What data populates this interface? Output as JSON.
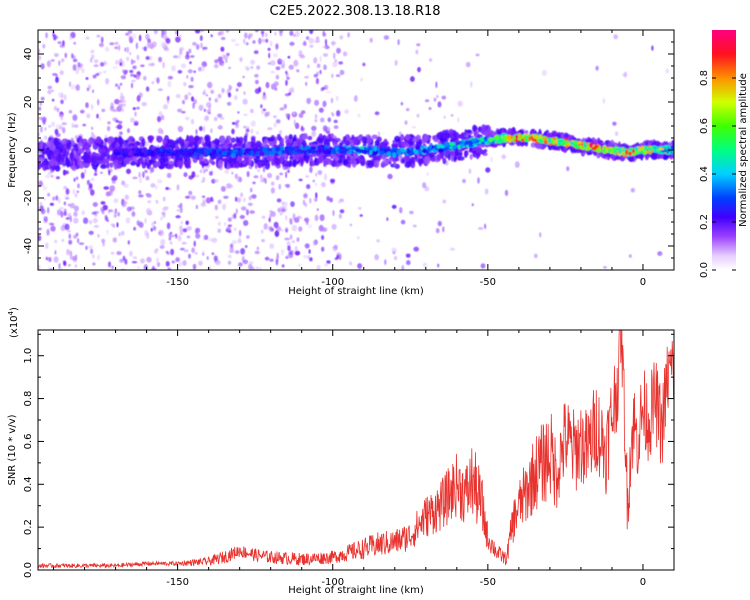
{
  "title": "C2E5.2022.308.13.18.R18",
  "colors": {
    "snr_line": "#e8322e",
    "spectrogram_base": "#6a00ff"
  },
  "chart_data": [
    {
      "type": "heatmap",
      "xlabel": "Height of straight line (km)",
      "ylabel": "Frequency (Hz)",
      "xlim": [
        -195,
        10
      ],
      "ylim": [
        -50,
        50
      ],
      "xticks": [
        -150,
        -100,
        -50,
        0
      ],
      "yticks": [
        -40,
        -20,
        0,
        20,
        40
      ],
      "tick_labels_x": [
        "-150",
        "-100",
        "-50",
        "0"
      ],
      "tick_labels_y": [
        "-40",
        "-20",
        "0",
        "20",
        "40"
      ],
      "colorbar": {
        "label": "Normalized spectral amplitude",
        "range": [
          0,
          1
        ],
        "ticks": [
          "0.0",
          "0.2",
          "0.4",
          "0.6",
          "0.8"
        ],
        "colormap": "rainbow"
      },
      "ridge": {
        "description_points_x": [
          -195,
          -170,
          -150,
          -130,
          -110,
          -100,
          -90,
          -80,
          -70,
          -60,
          -50,
          -45,
          -40,
          -35,
          -30,
          -25,
          -20,
          -15,
          -10,
          -5,
          0,
          5,
          10
        ],
        "frequency_hz": [
          -2,
          -1,
          -1,
          -1,
          0,
          0,
          0,
          -1,
          0,
          2,
          4,
          5,
          5,
          5,
          4,
          3,
          2,
          1,
          0,
          -1,
          0,
          0,
          0
        ],
        "peak_amplitude": [
          0.25,
          0.35,
          0.4,
          0.45,
          0.45,
          0.45,
          0.55,
          0.5,
          0.55,
          0.6,
          0.7,
          0.8,
          0.95,
          0.95,
          0.9,
          0.9,
          1.0,
          1.0,
          0.95,
          0.9,
          0.95,
          0.85,
          0.6
        ]
      }
    },
    {
      "type": "line",
      "xlabel": "Height of straight line (km)",
      "ylabel": "SNR (10 * v/v)",
      "yscale_label": "(x10",
      "yscale_exp": "4",
      "yscale_close": ")",
      "xlim": [
        -195,
        10
      ],
      "ylim": [
        0,
        1.12
      ],
      "xticks": [
        -150,
        -100,
        -50,
        0
      ],
      "yticks": [
        0.0,
        0.2,
        0.4,
        0.6,
        0.8,
        1.0
      ],
      "tick_labels_x": [
        "-150",
        "-100",
        "-50",
        "0"
      ],
      "tick_labels_y": [
        "0.0",
        "0.2",
        "0.4",
        "0.6",
        "0.8",
        "1.0"
      ],
      "series": [
        {
          "x": [
            -195,
            -190,
            -180,
            -170,
            -160,
            -150,
            -140,
            -135,
            -130,
            -125,
            -120,
            -110,
            -100,
            -95,
            -90,
            -85,
            -80,
            -75,
            -70,
            -65,
            -60,
            -57,
            -55,
            -52,
            -50,
            -47,
            -44,
            -42,
            -40,
            -38,
            -35,
            -32,
            -30,
            -28,
            -25,
            -22,
            -20,
            -18,
            -15,
            -12,
            -10,
            -8,
            -7,
            -6,
            -5,
            -4,
            -3,
            -2,
            0,
            2,
            4,
            6,
            8,
            10
          ],
          "values": [
            0.02,
            0.02,
            0.02,
            0.02,
            0.03,
            0.03,
            0.04,
            0.06,
            0.09,
            0.07,
            0.06,
            0.05,
            0.06,
            0.08,
            0.1,
            0.12,
            0.13,
            0.16,
            0.25,
            0.3,
            0.4,
            0.35,
            0.42,
            0.3,
            0.15,
            0.08,
            0.05,
            0.22,
            0.3,
            0.35,
            0.45,
            0.5,
            0.55,
            0.45,
            0.62,
            0.55,
            0.6,
            0.55,
            0.68,
            0.55,
            0.72,
            0.9,
            1.12,
            0.75,
            0.3,
            0.55,
            0.7,
            0.6,
            0.75,
            0.7,
            0.8,
            0.65,
            0.9,
            0.95
          ],
          "noise_amplitude": [
            0.01,
            0.01,
            0.01,
            0.01,
            0.01,
            0.01,
            0.02,
            0.03,
            0.03,
            0.03,
            0.03,
            0.03,
            0.03,
            0.04,
            0.05,
            0.06,
            0.06,
            0.07,
            0.1,
            0.12,
            0.15,
            0.15,
            0.18,
            0.15,
            0.06,
            0.04,
            0.03,
            0.1,
            0.12,
            0.15,
            0.18,
            0.2,
            0.22,
            0.18,
            0.2,
            0.2,
            0.2,
            0.2,
            0.22,
            0.2,
            0.22,
            0.2,
            0.15,
            0.2,
            0.15,
            0.2,
            0.2,
            0.2,
            0.2,
            0.2,
            0.2,
            0.2,
            0.2,
            0.2
          ]
        }
      ]
    }
  ]
}
